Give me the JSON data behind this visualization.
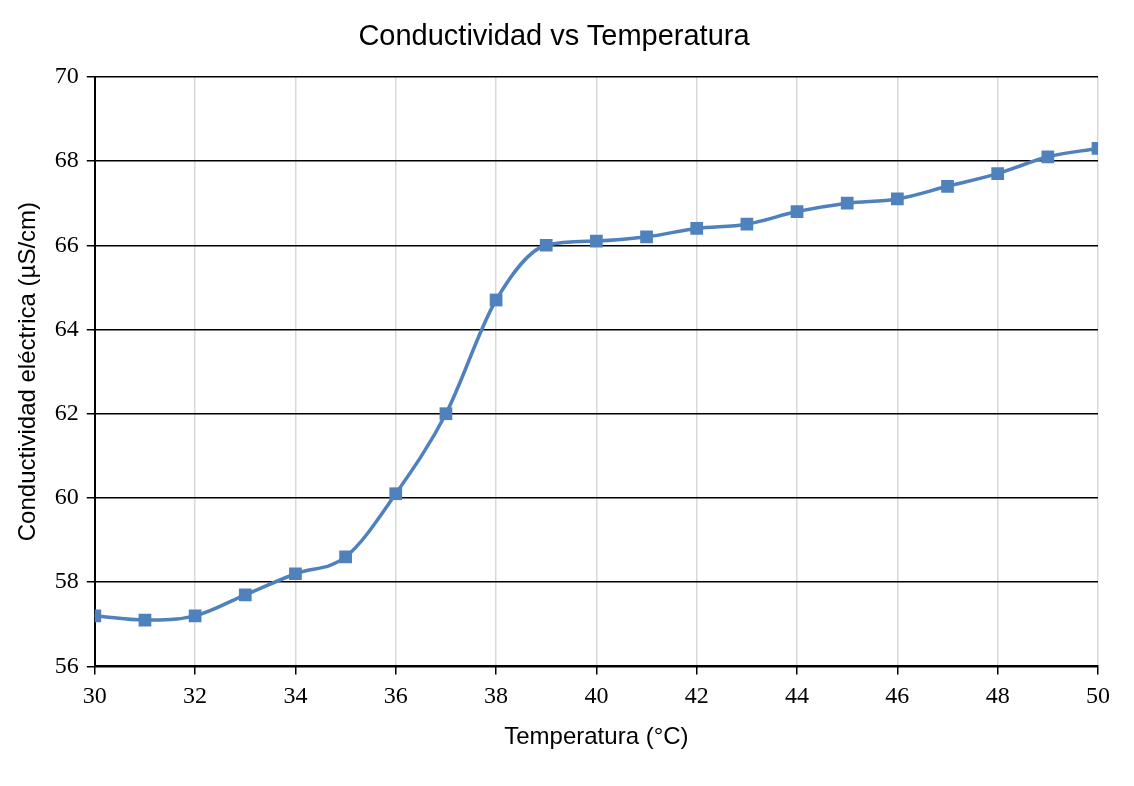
{
  "chart_data": {
    "type": "line",
    "title": "Conductividad vs Temperatura",
    "xlabel": "Temperatura (°C)",
    "ylabel": "Conductividad eléctrica (µS/cm)",
    "x": [
      30,
      31,
      32,
      33,
      34,
      35,
      36,
      37,
      38,
      39,
      40,
      41,
      42,
      43,
      44,
      45,
      46,
      47,
      48,
      49,
      50
    ],
    "series": [
      {
        "color": "#4f81bd",
        "values": [
          57.2,
          57.1,
          57.2,
          57.7,
          58.2,
          58.6,
          60.1,
          62.0,
          64.7,
          66.0,
          66.1,
          66.2,
          66.4,
          66.5,
          66.8,
          67.0,
          67.1,
          67.4,
          67.7,
          68.1,
          68.3
        ]
      }
    ],
    "xlim": [
      30,
      50
    ],
    "xticks": [
      30,
      32,
      34,
      36,
      38,
      40,
      42,
      44,
      46,
      48,
      50
    ],
    "ylim": [
      56,
      70
    ],
    "yticks": [
      56,
      58,
      60,
      62,
      64,
      66,
      68,
      70
    ],
    "grid": true,
    "legend": false,
    "marker": "square",
    "line_style": "solid"
  }
}
